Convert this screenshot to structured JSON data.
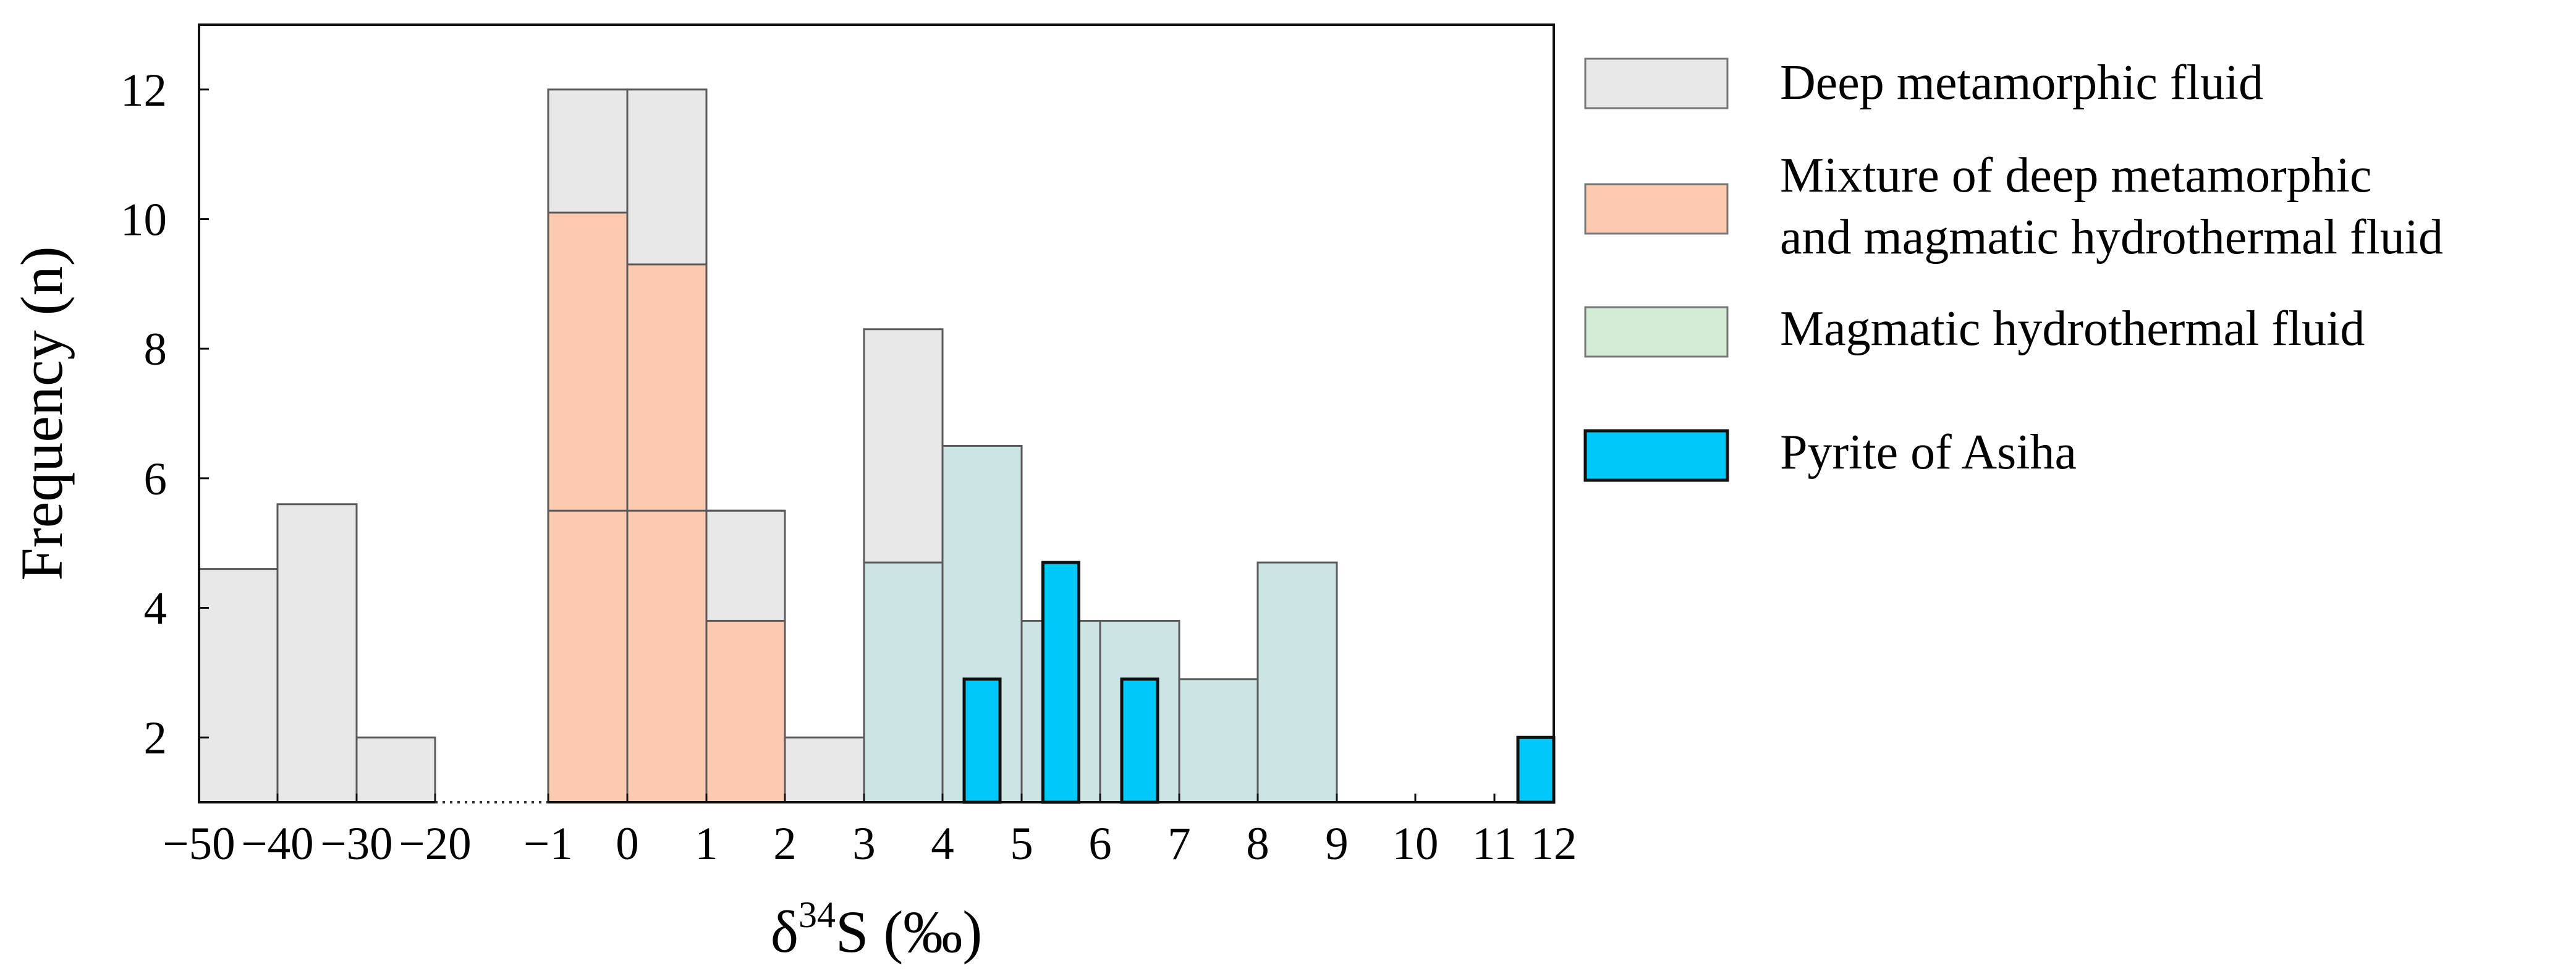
{
  "chart_data": {
    "type": "bar",
    "title": "",
    "xlabel": "δ34S (‰)",
    "xlabel_parts": {
      "pre": "δ",
      "sup": "34",
      "post": "S (‰)"
    },
    "ylabel": "Frequency (n)",
    "ylim": [
      1,
      13
    ],
    "grid": false,
    "legend_position": "right",
    "x_ticks": [
      "−50",
      "−40",
      "−30",
      "−20",
      "−1",
      "0",
      "1",
      "2",
      "3",
      "4",
      "5",
      "6",
      "7",
      "8",
      "9",
      "10",
      "11",
      "12"
    ],
    "y_ticks": [
      "2",
      "4",
      "6",
      "8",
      "10",
      "12"
    ],
    "axis_break": {
      "from": "−20",
      "to": "−1"
    },
    "series": [
      {
        "name": "Deep metamorphic fluid",
        "color": "#e8e8e8",
        "bars": [
          {
            "from": "−50",
            "to": "−40",
            "value": 4.6
          },
          {
            "from": "−40",
            "to": "−30",
            "value": 5.6
          },
          {
            "from": "−30",
            "to": "−20",
            "value": 2.0
          },
          {
            "from": "−1",
            "to": "0",
            "value": 12.0
          },
          {
            "from": "0",
            "to": "1",
            "value": 12.0
          },
          {
            "from": "1",
            "to": "2",
            "value": 5.5
          },
          {
            "from": "2",
            "to": "3",
            "value": 2.0
          },
          {
            "from": "3",
            "to": "4",
            "value": 8.3
          }
        ]
      },
      {
        "name": "Mixture of deep metamorphic and magmatic hydrothermal fluid",
        "label_lines": [
          "Mixture of deep metamorphic",
          "and magmatic hydrothermal fluid"
        ],
        "color": "#fcc9b1",
        "bars": [
          {
            "from": "−1",
            "to": "0",
            "value": 10.1
          },
          {
            "from": "0",
            "to": "1",
            "value": 9.3
          },
          {
            "from": "1",
            "to": "2",
            "value": 3.8
          }
        ]
      },
      {
        "name": "Magmatic hydrothermal fluid",
        "color": "#cde4e4",
        "legend_color": "#d3ead5",
        "bars": [
          {
            "from": "3",
            "to": "4",
            "value": 4.7
          },
          {
            "from": "4",
            "to": "5",
            "value": 6.5
          },
          {
            "from": "5",
            "to": "6",
            "value": 3.8
          },
          {
            "from": "6",
            "to": "7",
            "value": 3.8
          },
          {
            "from": "7",
            "to": "8",
            "value": 2.9
          },
          {
            "from": "8",
            "to": "9",
            "value": 4.7
          }
        ]
      },
      {
        "name": "Pyrite of Asiha",
        "color": "#00c8f8",
        "bars": [
          {
            "from": "4",
            "to": "5",
            "value": 2.9
          },
          {
            "from": "5",
            "to": "6",
            "value": 4.7
          },
          {
            "from": "6",
            "to": "7",
            "value": 2.9
          },
          {
            "from": "11",
            "to": "12",
            "value": 2.0
          }
        ]
      }
    ],
    "thin_lines": {
      "Deep metamorphic fluid": [
        5.5
      ],
      "Magmatic hydrothermal fluid": [
        5.5
      ]
    }
  }
}
